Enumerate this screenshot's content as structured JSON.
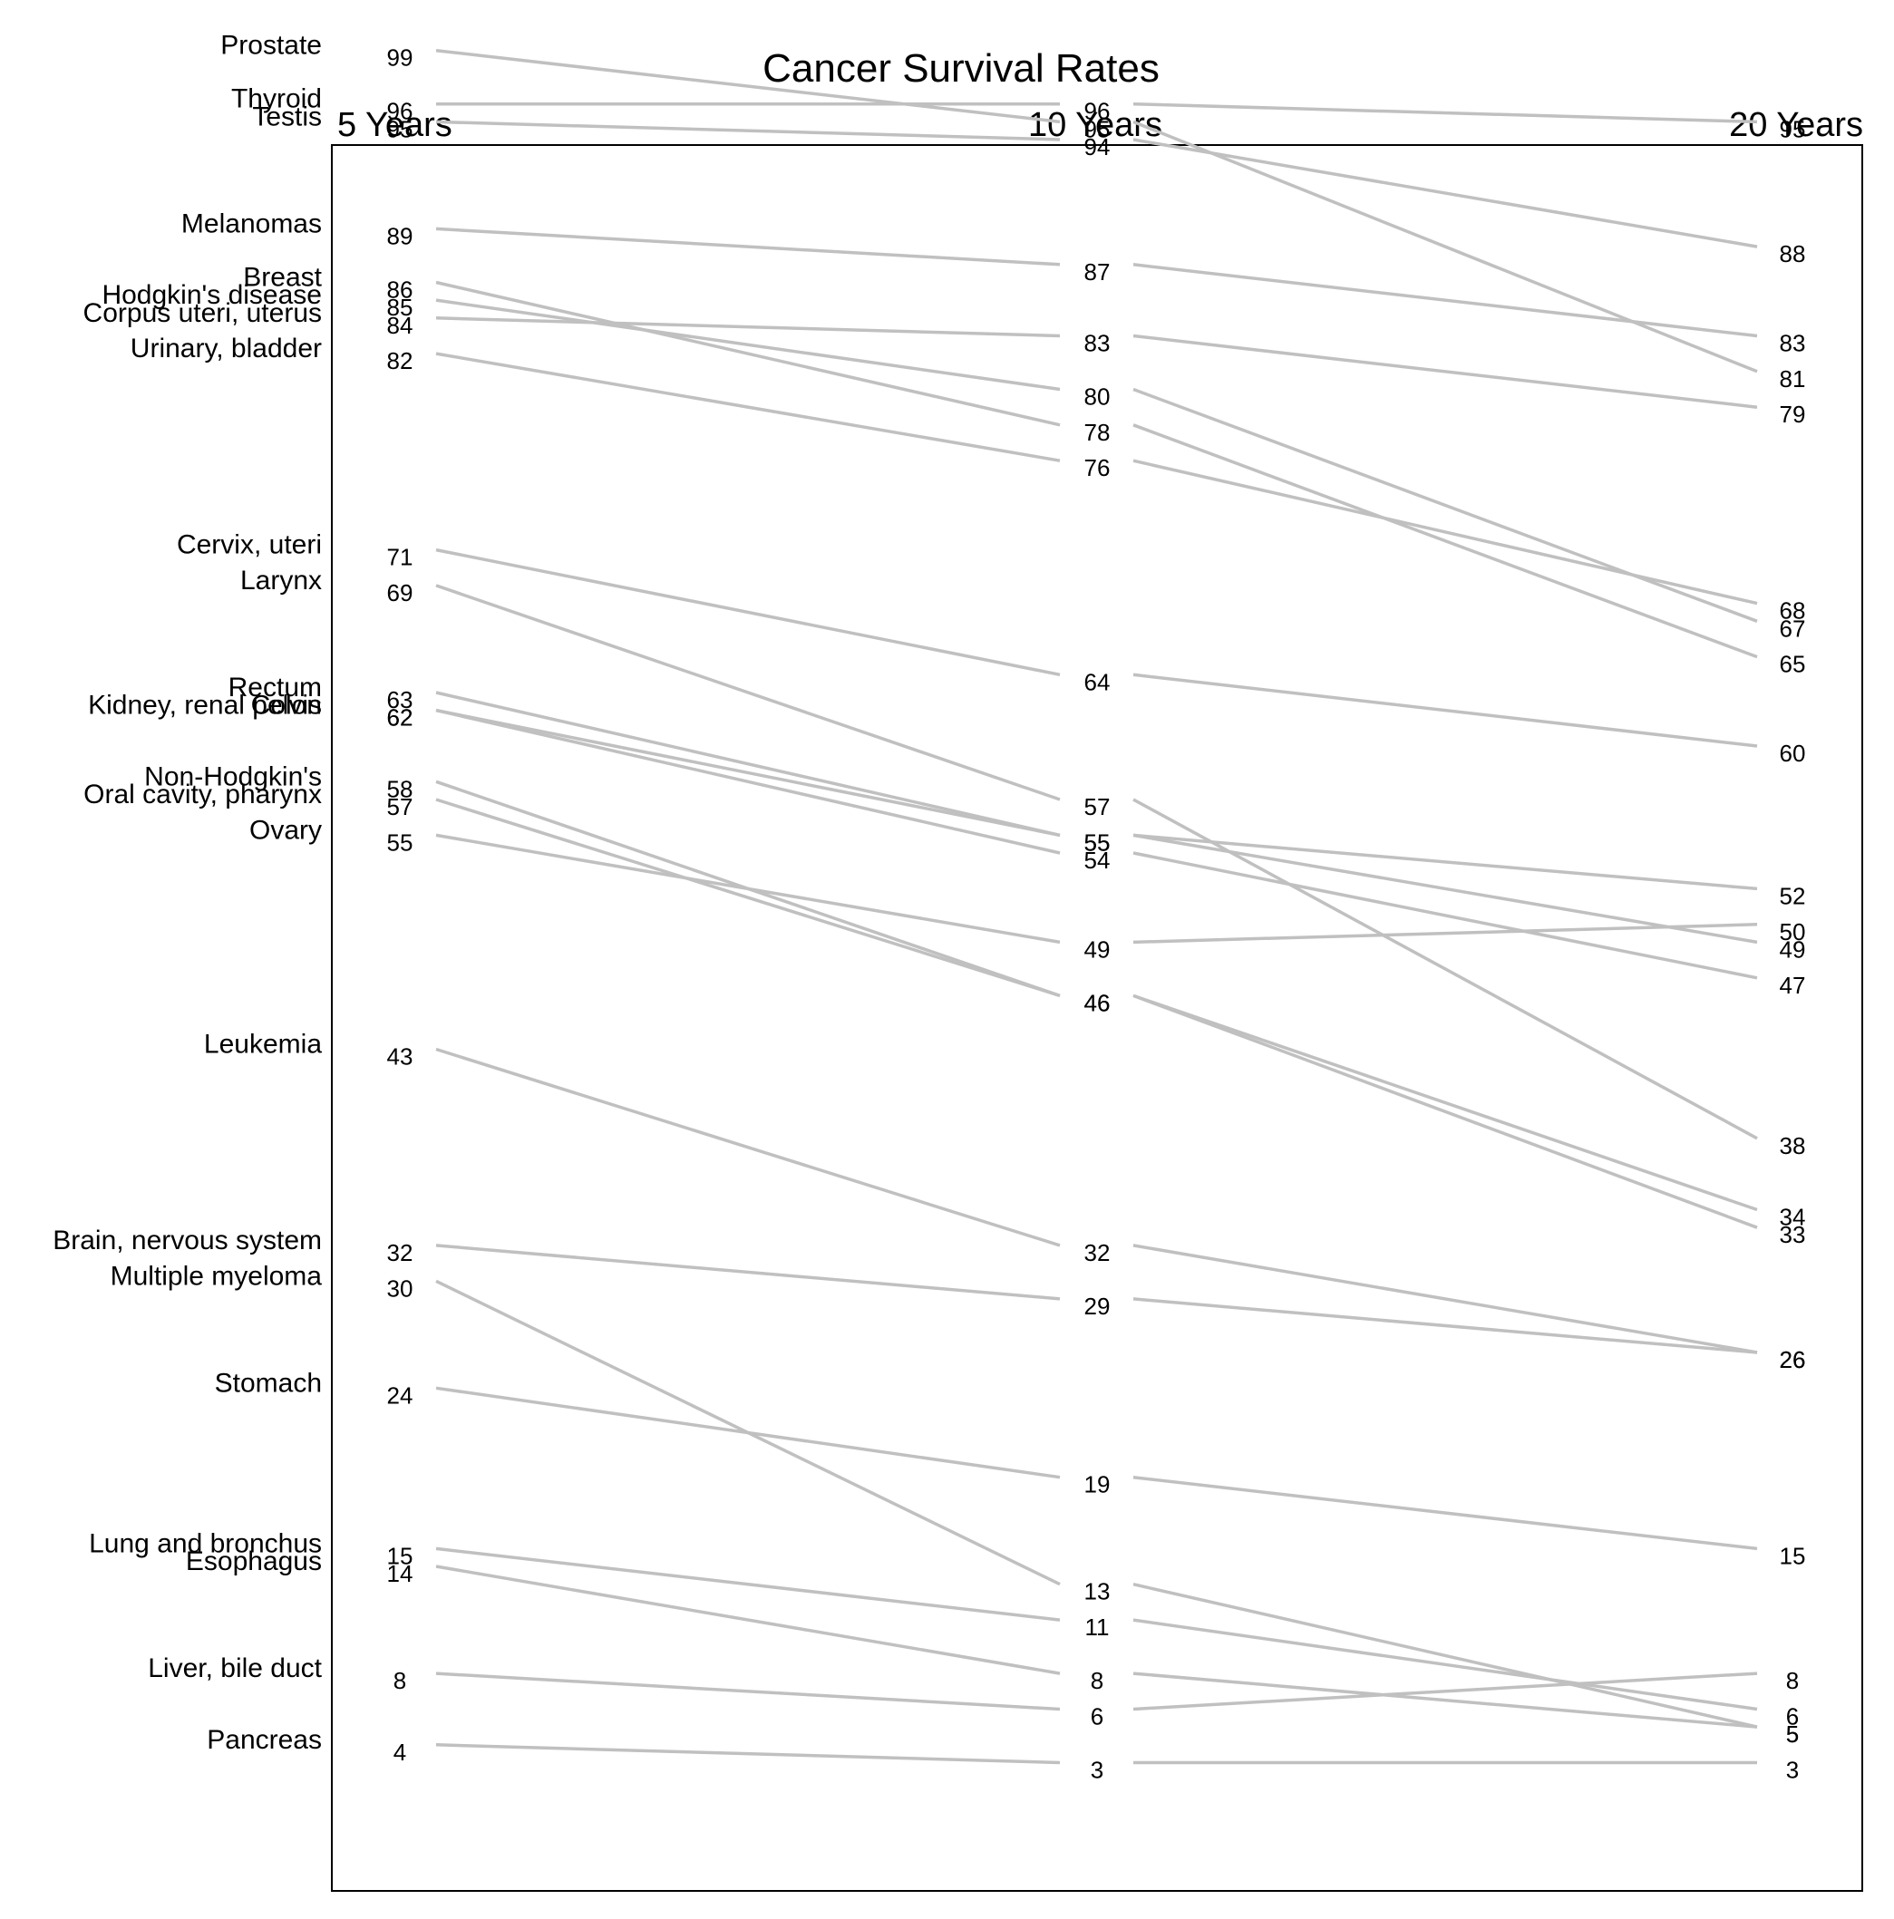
{
  "chart_data": {
    "type": "line",
    "subtype": "slopegraph",
    "title": "Cancer Survival Rates",
    "columns": [
      "5 Years",
      "10 Years",
      "20 Years"
    ],
    "series": [
      {
        "name": "Prostate",
        "values": [
          99,
          95,
          81
        ]
      },
      {
        "name": "Thyroid",
        "values": [
          96,
          96,
          95
        ]
      },
      {
        "name": "Testis",
        "values": [
          95,
          94,
          88
        ]
      },
      {
        "name": "Melanomas",
        "values": [
          89,
          87,
          83
        ]
      },
      {
        "name": "Breast",
        "values": [
          86,
          78,
          65
        ]
      },
      {
        "name": "Hodgkin's disease",
        "values": [
          85,
          80,
          67
        ]
      },
      {
        "name": "Corpus uteri, uterus",
        "values": [
          84,
          83,
          79
        ]
      },
      {
        "name": "Urinary, bladder",
        "values": [
          82,
          76,
          68
        ]
      },
      {
        "name": "Cervix, uteri",
        "values": [
          71,
          64,
          60
        ]
      },
      {
        "name": "Larynx",
        "values": [
          69,
          57,
          38
        ]
      },
      {
        "name": "Rectum",
        "values": [
          63,
          55,
          49
        ]
      },
      {
        "name": "Kidney, renal pelvis",
        "values": [
          62,
          54,
          47
        ]
      },
      {
        "name": "Colon",
        "values": [
          62,
          55,
          52
        ]
      },
      {
        "name": "Non-Hodgkin's",
        "values": [
          58,
          46,
          34
        ]
      },
      {
        "name": "Oral cavity, pharynx",
        "values": [
          57,
          46,
          33
        ]
      },
      {
        "name": "Ovary",
        "values": [
          55,
          49,
          50
        ]
      },
      {
        "name": "Leukemia",
        "values": [
          43,
          32,
          26
        ]
      },
      {
        "name": "Brain, nervous system",
        "values": [
          32,
          29,
          26
        ]
      },
      {
        "name": "Multiple myeloma",
        "values": [
          30,
          13,
          5
        ]
      },
      {
        "name": "Stomach",
        "values": [
          24,
          19,
          15
        ]
      },
      {
        "name": "Lung and bronchus",
        "values": [
          15,
          11,
          6
        ]
      },
      {
        "name": "Esophagus",
        "values": [
          14,
          8,
          5
        ]
      },
      {
        "name": "Liver, bile duct",
        "values": [
          8,
          6,
          8
        ]
      },
      {
        "name": "Pancreas",
        "values": [
          4,
          3,
          3
        ]
      }
    ],
    "grid": false,
    "legend": "none"
  }
}
